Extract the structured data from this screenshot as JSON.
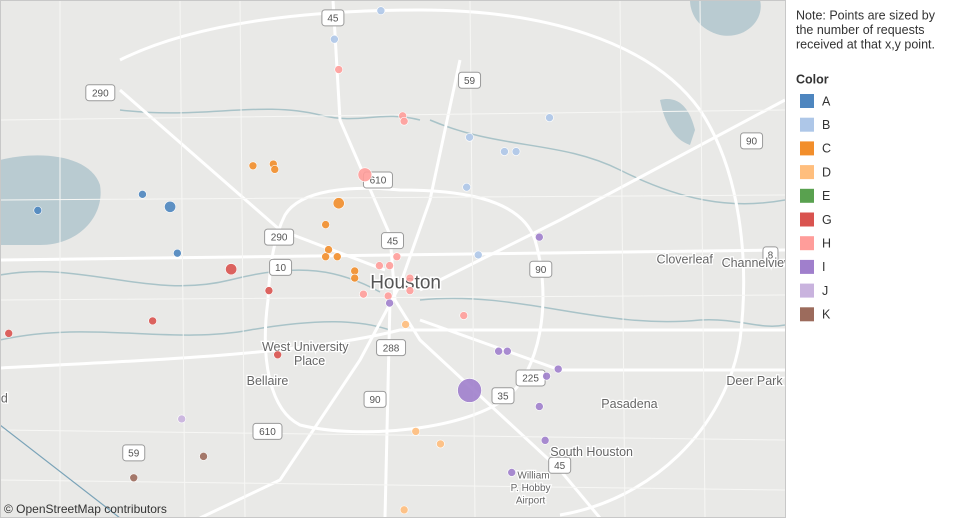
{
  "chart_data": {
    "type": "map",
    "xlim": [
      -95.65,
      -95.11
    ],
    "ylim": [
      29.63,
      29.92
    ],
    "note": [
      "Note: Points are sized by",
      "the number of requests",
      "received at that x,y point."
    ],
    "legend_title": "Color",
    "attribution": "© OpenStreetMap contributors",
    "series": [
      {
        "name": "A",
        "color": "#4e86bf",
        "lon": [
          -95.624,
          -95.552,
          -95.533,
          -95.528
        ],
        "lat": [
          29.802,
          29.811,
          29.804,
          29.778
        ],
        "size": [
          1,
          1,
          2,
          1
        ]
      },
      {
        "name": "B",
        "color": "#aec7e8",
        "lon": [
          -95.42,
          -95.388,
          -95.272,
          -95.327,
          -95.303,
          -95.295,
          -95.329,
          -95.321
        ],
        "lat": [
          29.898,
          29.914,
          29.854,
          29.843,
          29.835,
          29.835,
          29.815,
          29.777
        ],
        "size": [
          1,
          1,
          1,
          1,
          1,
          1,
          1,
          1
        ]
      },
      {
        "name": "C",
        "color": "#f28e2b",
        "lon": [
          -95.476,
          -95.462,
          -95.461,
          -95.417,
          -95.426,
          -95.424,
          -95.426,
          -95.418,
          -95.406,
          -95.406
        ],
        "lat": [
          29.827,
          29.828,
          29.825,
          29.806,
          29.794,
          29.78,
          29.776,
          29.776,
          29.768,
          29.764
        ],
        "size": [
          1,
          1,
          1,
          2,
          1,
          1,
          1,
          1,
          1,
          1
        ]
      },
      {
        "name": "D",
        "color": "#ffbe7d",
        "lon": [
          -95.371,
          -95.364,
          -95.347,
          -95.372
        ],
        "lat": [
          29.738,
          29.678,
          29.671,
          29.634
        ],
        "size": [
          1,
          1,
          1,
          1
        ]
      },
      {
        "name": "E",
        "color": "#59a14f",
        "lon": [],
        "lat": [],
        "size": []
      },
      {
        "name": "G",
        "color": "#d9534f",
        "lon": [
          -95.644,
          -95.545,
          -95.491,
          -95.465,
          -95.459
        ],
        "lat": [
          29.733,
          29.74,
          29.769,
          29.757,
          29.721
        ],
        "size": [
          1,
          1,
          2,
          1,
          1
        ]
      },
      {
        "name": "H",
        "color": "#ff9d9a",
        "lon": [
          -95.417,
          -95.373,
          -95.372,
          -95.399,
          -95.389,
          -95.377,
          -95.382,
          -95.368,
          -95.4,
          -95.383,
          -95.331,
          -95.368
        ],
        "lat": [
          29.881,
          29.855,
          29.852,
          29.822,
          29.771,
          29.776,
          29.771,
          29.764,
          29.755,
          29.754,
          29.743,
          29.757
        ],
        "size": [
          1,
          1,
          1,
          3,
          1,
          1,
          1,
          1,
          1,
          1,
          1,
          1
        ]
      },
      {
        "name": "I",
        "color": "#a07fcc",
        "lon": [
          -95.279,
          -95.382,
          -95.307,
          -95.301,
          -95.327,
          -95.274,
          -95.266,
          -95.279,
          -95.275,
          -95.298
        ],
        "lat": [
          29.787,
          29.75,
          29.723,
          29.723,
          29.701,
          29.709,
          29.713,
          29.692,
          29.673,
          29.655
        ],
        "size": [
          1,
          1,
          1,
          1,
          9,
          1,
          1,
          1,
          1,
          1
        ]
      },
      {
        "name": "J",
        "color": "#c9b3de",
        "lon": [
          -95.525
        ],
        "lat": [
          29.685
        ],
        "size": [
          1
        ]
      },
      {
        "name": "K",
        "color": "#9c6b5c",
        "lon": [
          -95.51,
          -95.558
        ],
        "lat": [
          29.664,
          29.652
        ],
        "size": [
          1,
          1
        ]
      }
    ],
    "places": [
      {
        "name": "Houston",
        "lon": -95.371,
        "lat": 29.761
      },
      {
        "name": "Cloverleaf",
        "lon": -95.179,
        "lat": 29.774
      },
      {
        "name": "Channelview",
        "lon": -95.129,
        "lat": 29.772
      },
      {
        "name": "West University",
        "lon": -95.44,
        "lat": 29.725
      },
      {
        "name": "Place",
        "lon": -95.437,
        "lat": 29.717
      },
      {
        "name": "Bellaire",
        "lon": -95.466,
        "lat": 29.706
      },
      {
        "name": "Pasadena",
        "lon": -95.217,
        "lat": 29.693
      },
      {
        "name": "Deer Park",
        "lon": -95.131,
        "lat": 29.706
      },
      {
        "name": "South Houston",
        "lon": -95.243,
        "lat": 29.666
      },
      {
        "name": "William",
        "lon": -95.283,
        "lat": 29.653
      },
      {
        "name": "P. Hobby",
        "lon": -95.285,
        "lat": 29.646
      },
      {
        "name": "Airport",
        "lon": -95.285,
        "lat": 29.639
      },
      {
        "name": "d",
        "lon": -95.647,
        "lat": 29.696
      }
    ],
    "highways": [
      {
        "label": "45",
        "lon": -95.421,
        "lat": 29.91
      },
      {
        "label": "45",
        "lon": -95.38,
        "lat": 29.785
      },
      {
        "label": "45",
        "lon": -95.265,
        "lat": 29.659
      },
      {
        "label": "59",
        "lon": -95.327,
        "lat": 29.875
      },
      {
        "label": "59",
        "lon": -95.558,
        "lat": 29.666
      },
      {
        "label": "290",
        "lon": -95.581,
        "lat": 29.868
      },
      {
        "label": "290",
        "lon": -95.458,
        "lat": 29.787
      },
      {
        "label": "610",
        "lon": -95.39,
        "lat": 29.819
      },
      {
        "label": "610",
        "lon": -95.466,
        "lat": 29.678
      },
      {
        "label": "90",
        "lon": -95.133,
        "lat": 29.841
      },
      {
        "label": "90",
        "lon": -95.278,
        "lat": 29.769
      },
      {
        "label": "90",
        "lon": -95.392,
        "lat": 29.696
      },
      {
        "label": "10",
        "lon": -95.457,
        "lat": 29.77
      },
      {
        "label": "288",
        "lon": -95.381,
        "lat": 29.725
      },
      {
        "label": "225",
        "lon": -95.285,
        "lat": 29.708
      },
      {
        "label": "35",
        "lon": -95.304,
        "lat": 29.698
      },
      {
        "label": "8",
        "lon": -95.12,
        "lat": 29.777
      }
    ]
  }
}
